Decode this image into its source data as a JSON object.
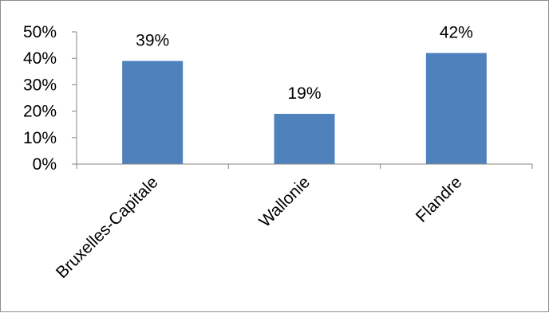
{
  "chart_data": {
    "type": "bar",
    "categories": [
      "Bruxelles-Capitale",
      "Wallonie",
      "Flandre"
    ],
    "values": [
      39,
      19,
      42
    ],
    "data_labels": [
      "39%",
      "19%",
      "42%"
    ],
    "title": "",
    "xlabel": "",
    "ylabel": "",
    "ylim": [
      0,
      50
    ],
    "yticks": [
      0,
      10,
      20,
      30,
      40,
      50
    ],
    "ytick_labels": [
      "0%",
      "10%",
      "20%",
      "30%",
      "40%",
      "50%"
    ],
    "grid": false,
    "legend": "none",
    "bar_color": "#4f81bd"
  }
}
